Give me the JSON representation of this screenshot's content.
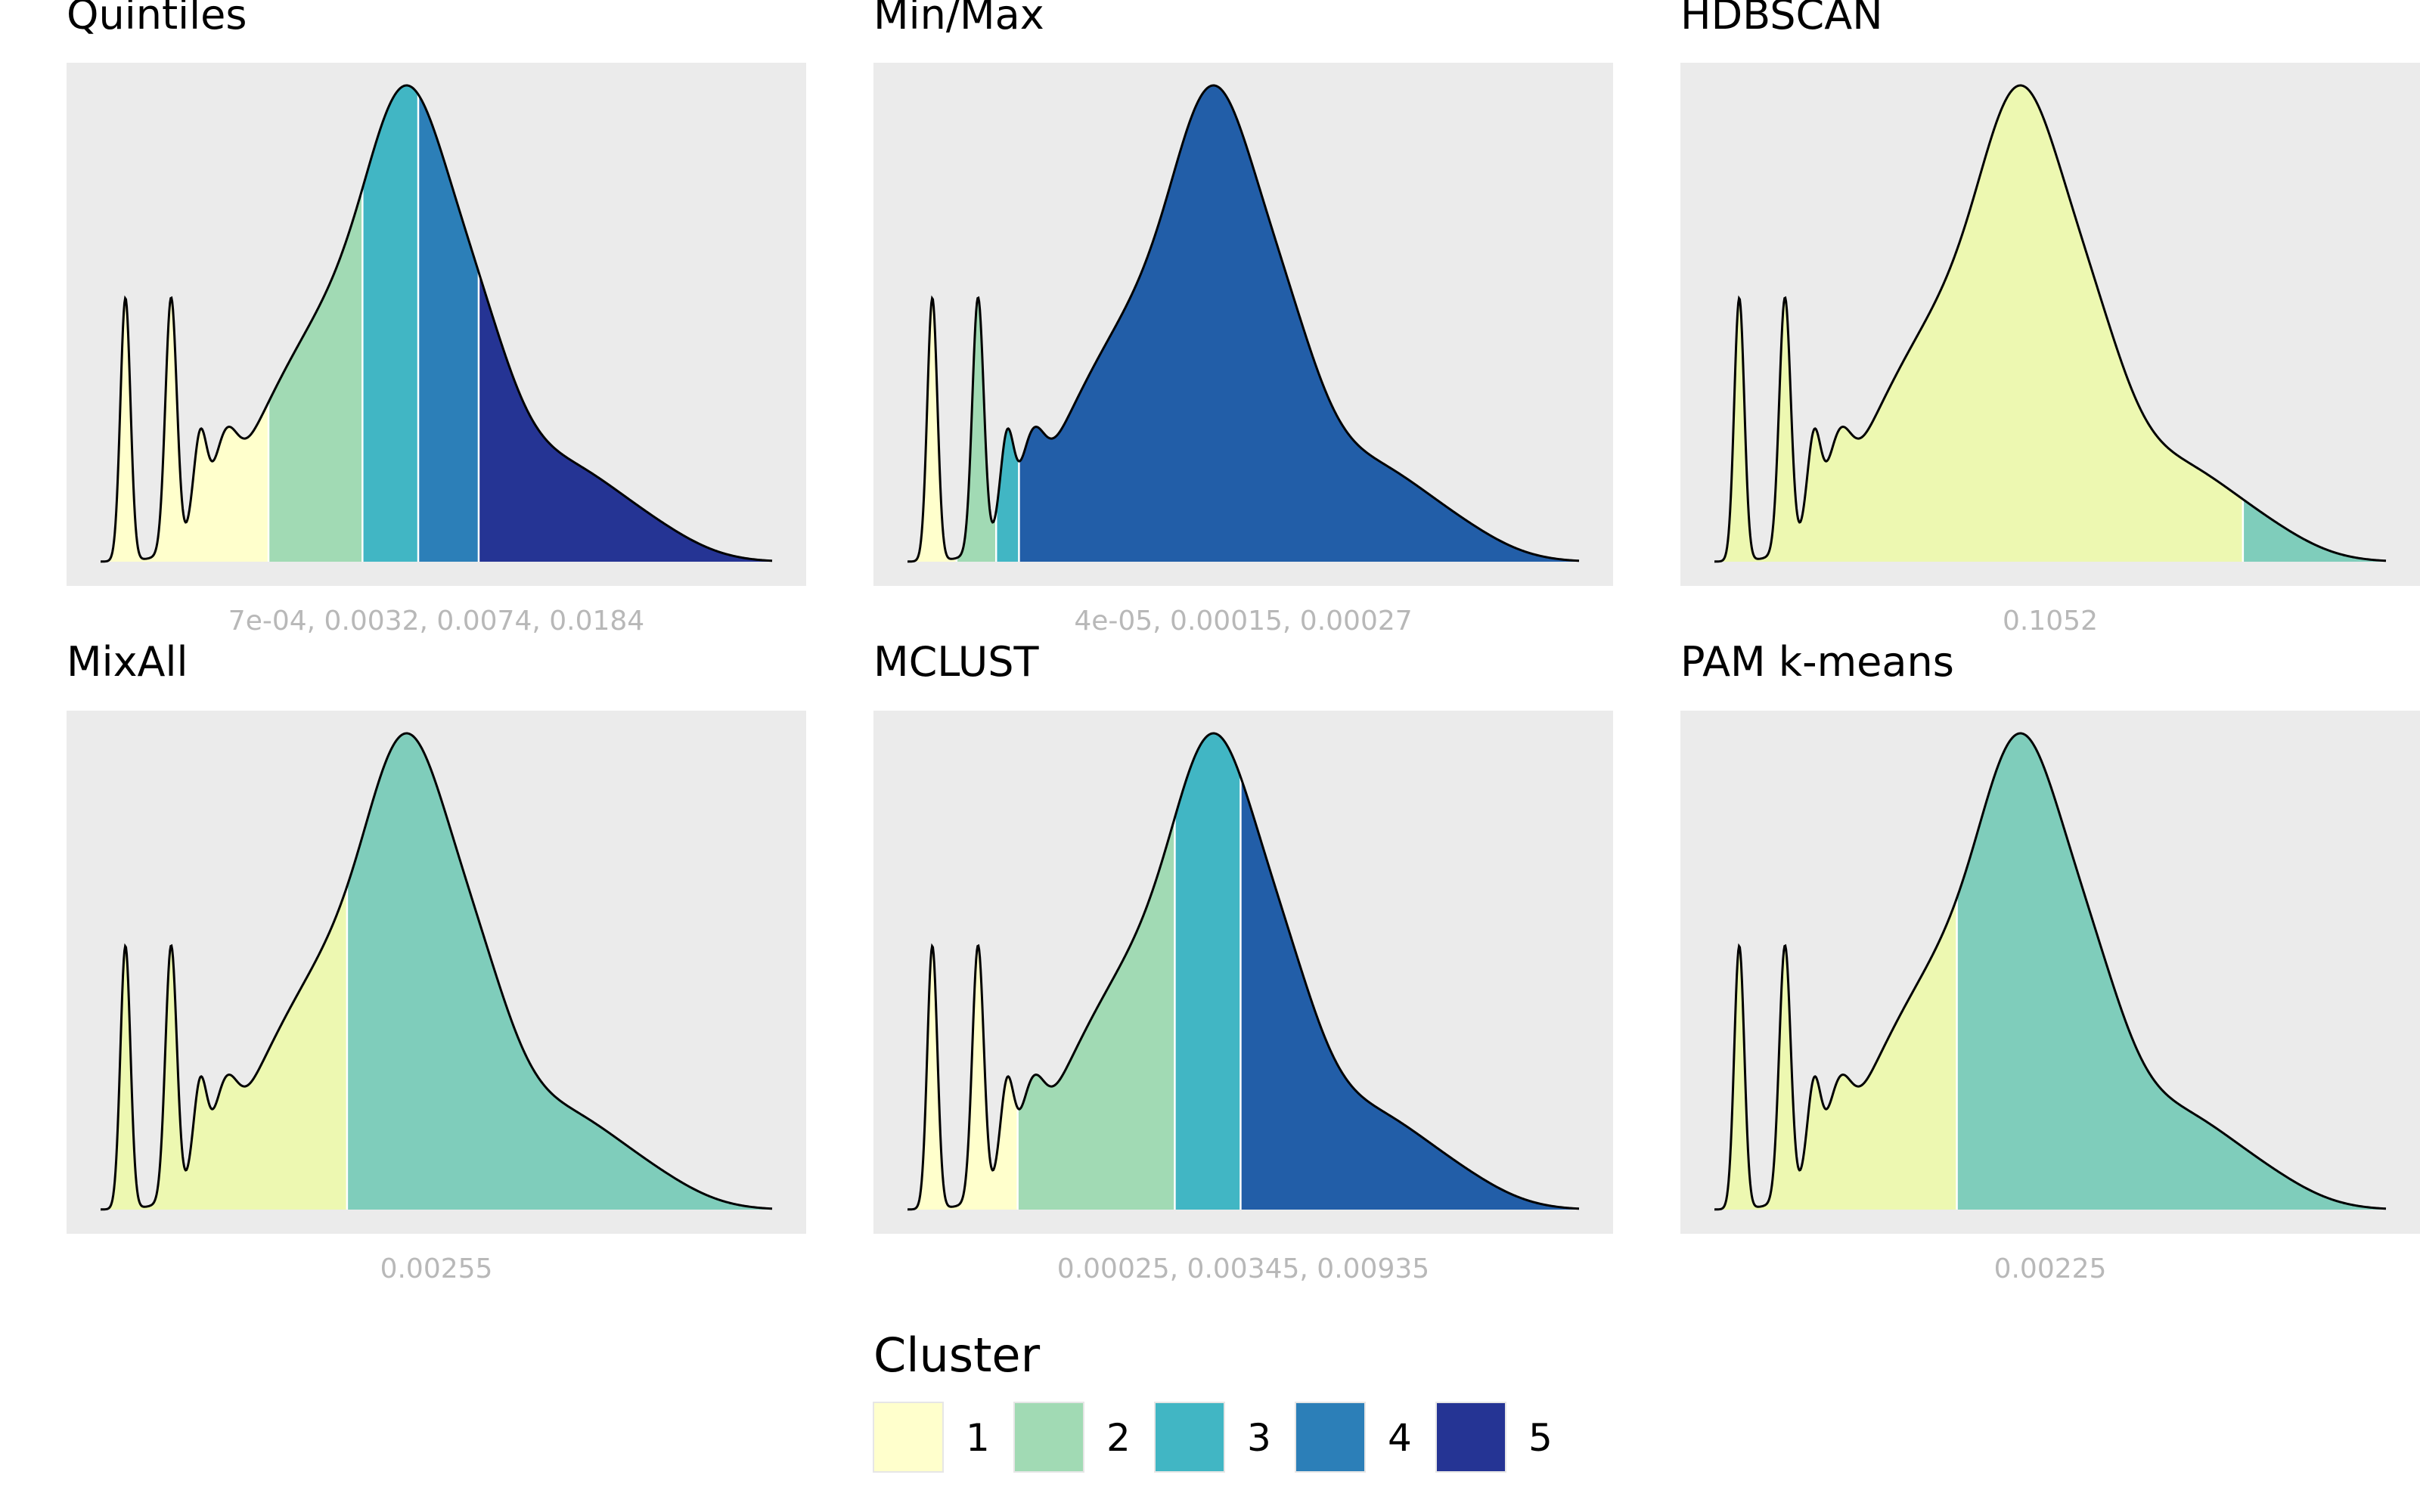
{
  "colors": {
    "panel_background": "#ebebeb",
    "tick_label": "#b8b8b8",
    "curve": "#000000",
    "cluster_palette": [
      "#ffffcc",
      "#a1dab4",
      "#41b6c4",
      "#2c7fb8",
      "#253494"
    ]
  },
  "legend": {
    "title": "Cluster",
    "items": [
      {
        "label": "1",
        "color": "#ffffcc"
      },
      {
        "label": "2",
        "color": "#a1dab4"
      },
      {
        "label": "3",
        "color": "#41b6c4"
      },
      {
        "label": "4",
        "color": "#2c7fb8"
      },
      {
        "label": "5",
        "color": "#253494"
      }
    ]
  },
  "chart_data": [
    {
      "type": "area",
      "title": "Quintiles",
      "tick_label": "7e-04, 0.0032, 0.0074, 0.0184",
      "breaks": [
        "7e-04",
        "0.0032",
        "0.0074",
        "0.0184"
      ],
      "cluster_colors": [
        "#ffffcc",
        "#a1dab4",
        "#41b6c4",
        "#2c7fb8",
        "#253494"
      ]
    },
    {
      "type": "area",
      "title": "Min/Max",
      "tick_label": "4e-05, 0.00015, 0.00027",
      "breaks": [
        "4e-05",
        "0.00015",
        "0.00027"
      ],
      "cluster_colors": [
        "#ffffcc",
        "#a1dab4",
        "#41b6c4",
        "#225ea8"
      ]
    },
    {
      "type": "area",
      "title": "HDBSCAN",
      "tick_label": "0.1052",
      "breaks": [
        "0.1052"
      ],
      "cluster_colors": [
        "#edf8b1",
        "#7fcdbb"
      ]
    },
    {
      "type": "area",
      "title": "MixAll",
      "tick_label": "0.00255",
      "breaks": [
        "0.00255"
      ],
      "cluster_colors": [
        "#edf8b1",
        "#7fcdbb"
      ]
    },
    {
      "type": "area",
      "title": "MCLUST",
      "tick_label": "0.00025, 0.00345, 0.00935",
      "breaks": [
        "0.00025",
        "0.00345",
        "0.00935"
      ],
      "cluster_colors": [
        "#ffffcc",
        "#a1dab4",
        "#41b6c4",
        "#225ea8"
      ]
    },
    {
      "type": "area",
      "title": "PAM k-means",
      "tick_label": "0.00225",
      "breaks": [
        "0.00225"
      ],
      "cluster_colors": [
        "#edf8b1",
        "#7fcdbb"
      ]
    }
  ]
}
